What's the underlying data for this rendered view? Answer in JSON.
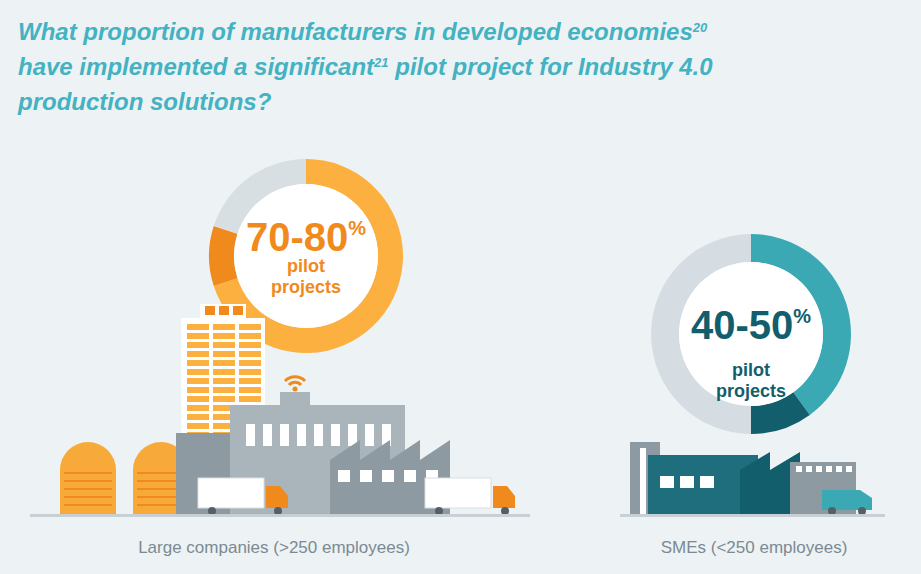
{
  "title": [
    [
      {
        "text": "What proportion of manufacturers in developed economies"
      },
      {
        "sup": "20"
      }
    ],
    [
      {
        "text": "have implemented a significant"
      },
      {
        "sup": "21"
      },
      {
        "text": " pilot project for Industry 4.0"
      }
    ],
    [
      {
        "text": "production solutions?"
      }
    ]
  ],
  "chart_data": [
    {
      "type": "donut",
      "label": "Large companies (>250 employees)",
      "values": [
        70,
        10,
        20
      ],
      "colors": [
        "#fbb040",
        "#f08a1c",
        "#d8dfe3"
      ],
      "value_label": "70-80",
      "unit": "%",
      "subtitle": [
        "pilot",
        "projects"
      ]
    },
    {
      "type": "donut",
      "label": "SMEs (<250 employees)",
      "values": [
        40,
        10,
        50
      ],
      "colors": [
        "#3aa9b4",
        "#125e6d",
        "#d6dde2"
      ],
      "value_label": "40-50",
      "unit": "%",
      "subtitle": [
        "pilot",
        "projects"
      ]
    }
  ]
}
